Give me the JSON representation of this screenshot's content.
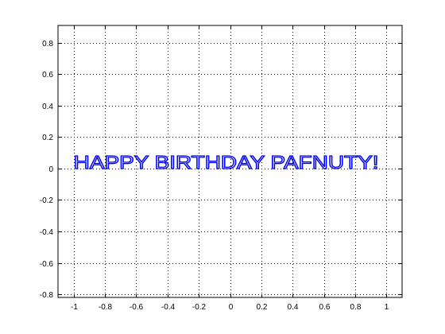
{
  "chart_data": {
    "type": "line",
    "title": "",
    "xlabel": "",
    "ylabel": "",
    "xlim": [
      -1.1,
      1.1
    ],
    "ylim": [
      -0.82,
      0.91
    ],
    "grid": true,
    "grid_style": "dotted",
    "x_ticks": [
      -1,
      -0.8,
      -0.6,
      -0.4,
      -0.2,
      0,
      0.2,
      0.4,
      0.6,
      0.8,
      1
    ],
    "x_tick_labels": [
      "-1",
      "-0.8",
      "-0.6",
      "-0.4",
      "-0.2",
      "0",
      "0.2",
      "0.4",
      "0.6",
      "0.8",
      "1"
    ],
    "y_ticks": [
      -0.8,
      -0.6,
      -0.4,
      -0.2,
      0,
      0.2,
      0.4,
      0.6,
      0.8
    ],
    "y_tick_labels": [
      "-0.8",
      "-0.6",
      "-0.4",
      "-0.2",
      "0",
      "0.2",
      "0.4",
      "0.6",
      "0.8"
    ],
    "text_annotation": {
      "text": "HAPPY BIRTHDAY PAFNUTY!",
      "x_start": -1.0,
      "x_end": 0.95,
      "y_baseline": 0.0,
      "y_top": 0.085,
      "color": "#0000ff"
    }
  },
  "colors": {
    "axis": "#000000",
    "grid": "#000000",
    "text_series": "#0000ff",
    "background": "#ffffff"
  }
}
